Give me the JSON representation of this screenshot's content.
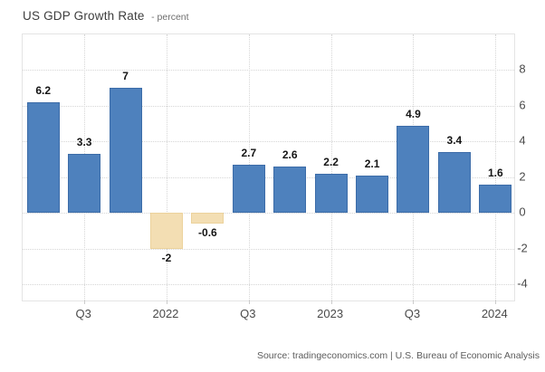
{
  "title": {
    "main": "US GDP Growth Rate",
    "suffix": "- percent"
  },
  "source": "Source: tradingeconomics.com | U.S. Bureau of Economic Analysis",
  "colors": {
    "positive_bar": "#4e81bd",
    "positive_bar_border": "#3c6ca8",
    "negative_bar": "#f3deb3",
    "negative_bar_border": "#ecd29c",
    "grid_line": "#d6d6d6",
    "axis_text": "#4a4a4a",
    "value_label_text": "#141414"
  },
  "chart_data": {
    "type": "bar",
    "title": "US GDP Growth Rate",
    "ylabel": "percent",
    "values": [
      6.2,
      3.3,
      7,
      -2,
      -0.6,
      2.7,
      2.6,
      2.2,
      2.1,
      4.9,
      3.4,
      1.6
    ],
    "bar_labels": [
      "6.2",
      "3.3",
      "7",
      "-2",
      "-0.6",
      "2.7",
      "2.6",
      "2.2",
      "2.1",
      "4.9",
      "3.4",
      "1.6"
    ],
    "x_tick_labels": [
      {
        "index": 1,
        "label": "Q3"
      },
      {
        "index": 3,
        "label": "2022"
      },
      {
        "index": 5,
        "label": "Q3"
      },
      {
        "index": 7,
        "label": "2023"
      },
      {
        "index": 9,
        "label": "Q3"
      },
      {
        "index": 11,
        "label": "2024"
      }
    ],
    "y_ticks": [
      8,
      6,
      4,
      2,
      0,
      -2,
      -4
    ],
    "ylim": [
      -5,
      10
    ],
    "grid": "dotted",
    "legend_position": "none"
  }
}
